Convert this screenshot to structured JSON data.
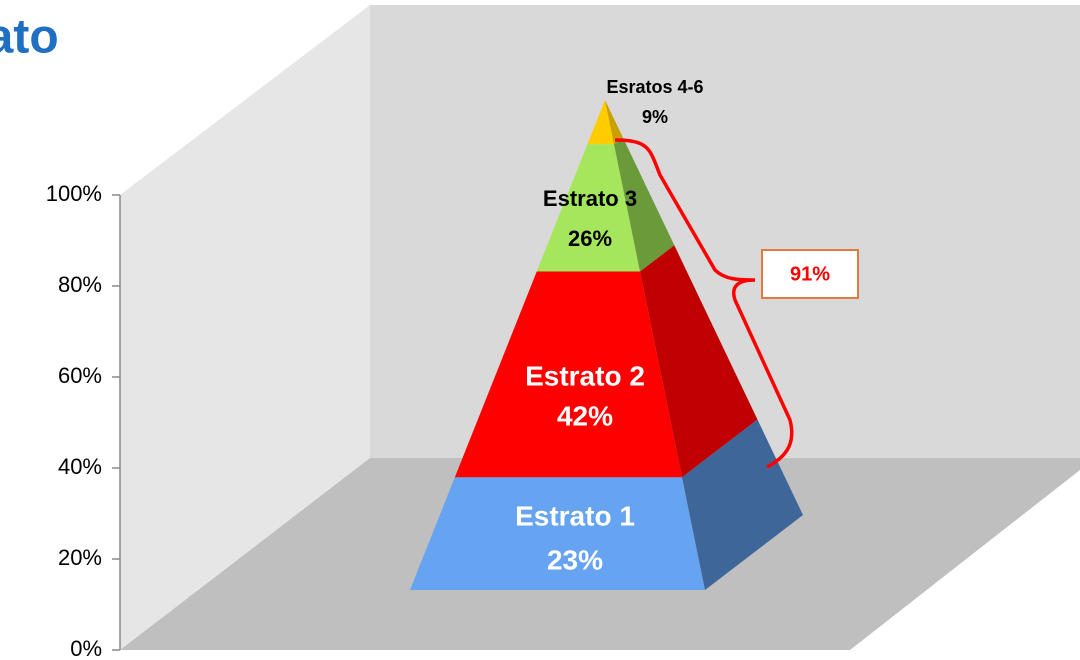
{
  "chart_data": {
    "type": "pyramid",
    "title": "rato",
    "categories": [
      "Estrato 1",
      "Estrato 2",
      "Estrato 3",
      "Esratos 4-6"
    ],
    "values": [
      23,
      42,
      26,
      9
    ],
    "value_labels": [
      "23%",
      "42%",
      "26%",
      "9%"
    ],
    "colors": [
      "#66a3f0",
      "#ff0000",
      "#a6e65c",
      "#ffcc00"
    ],
    "side_colors": [
      "#3f6699",
      "#c00000",
      "#6a9a3a",
      "#c9a000"
    ],
    "label_colors": [
      "#ffffff",
      "#ffffff",
      "#000000",
      "#000000"
    ],
    "ylim": [
      0,
      100
    ],
    "yticks": [
      {
        "value": 0,
        "label": "0%"
      },
      {
        "value": 20,
        "label": "20%"
      },
      {
        "value": 40,
        "label": "40%"
      },
      {
        "value": 60,
        "label": "60%"
      },
      {
        "value": 80,
        "label": "80%"
      },
      {
        "value": 100,
        "label": "100%"
      }
    ],
    "annotation": "91%"
  }
}
